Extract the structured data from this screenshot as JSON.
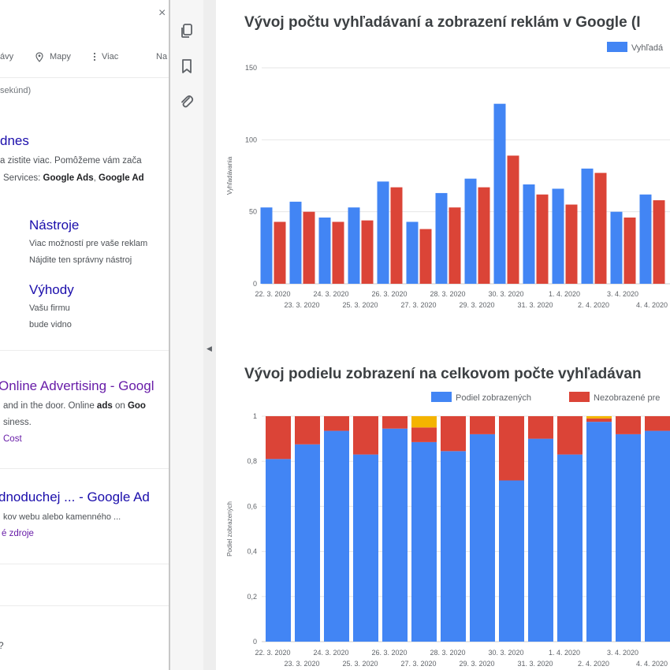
{
  "serp": {
    "close_glyph": "×",
    "nav": {
      "item1": "ávy",
      "maps": "Mapy",
      "more": "Viac",
      "trailing": "Na"
    },
    "stats": "sekúnd)",
    "result1": {
      "title": "dnes",
      "line1": "a zistite viac. Pomôžeme vám zača",
      "line2_prefix": "Services: ",
      "line2_b1": "Google Ads",
      "line2_sep": ", ",
      "line2_b2": "Google Ad"
    },
    "sublinks": [
      {
        "title": "Nástroje",
        "line1": "Viac možností pre vaše reklam",
        "line2": "Nájdite ten správny nástroj"
      },
      {
        "title": "Výhody",
        "line1": "Vašu firmu",
        "line2": "bude vidno"
      }
    ],
    "result2": {
      "title": "Online Advertising - Googl",
      "line1_prefix": "and in the door. Online ",
      "line1_b1": "ads",
      "line1_mid": " on ",
      "line1_b2": "Goo",
      "line2": "siness.",
      "link": "Cost"
    },
    "result3": {
      "title": "dnoduchej ... - Google Ad",
      "line1": "kov webu alebo kamenného ...",
      "link": "é zdroje"
    },
    "bottom_glyph": "?"
  },
  "toolbar": {
    "icons": [
      "copy-icon",
      "bookmark-icon",
      "attachment-icon"
    ]
  },
  "colors": {
    "blue": "#4285f4",
    "red": "#db4437",
    "yellow": "#f4b400",
    "grid": "#e6e6e6",
    "axis": "#cccccc"
  },
  "chart_data": [
    {
      "type": "bar",
      "title": "Vývoj počtu vyhľadávaní a zobrazení reklám v Google (I",
      "ylabel": "Vyhľadávania",
      "xlabel": "",
      "ylim": [
        0,
        150
      ],
      "yticks": [
        0,
        50,
        100,
        150
      ],
      "grid": true,
      "legend_position": "top-right",
      "categories": [
        "22. 3. 2020",
        "23. 3. 2020",
        "24. 3. 2020",
        "25. 3. 2020",
        "26. 3. 2020",
        "27. 3. 2020",
        "28. 3. 2020",
        "29. 3. 2020",
        "30. 3. 2020",
        "31. 3. 2020",
        "1. 4. 2020",
        "2. 4. 2020",
        "3. 4. 2020",
        "4. 4. 2020"
      ],
      "series": [
        {
          "name": "Vyhľadá",
          "color": "#4285f4",
          "values": [
            53,
            57,
            46,
            53,
            71,
            43,
            63,
            73,
            125,
            69,
            66,
            80,
            50,
            62
          ]
        },
        {
          "name": "",
          "color": "#db4437",
          "values": [
            43,
            50,
            43,
            44,
            67,
            38,
            53,
            67,
            89,
            62,
            55,
            77,
            46,
            58
          ]
        }
      ]
    },
    {
      "type": "bar",
      "stacked": true,
      "title": "Vývoj podielu zobrazení na celkovom počte vyhľadávan",
      "ylabel": "Podiel zobrazených",
      "xlabel": "",
      "ylim": [
        0,
        1
      ],
      "yticks": [
        "0",
        "0,2",
        "0,4",
        "0,6",
        "0,8",
        "1"
      ],
      "grid": true,
      "legend_position": "top",
      "categories": [
        "22. 3. 2020",
        "23. 3. 2020",
        "24. 3. 2020",
        "25. 3. 2020",
        "26. 3. 2020",
        "27. 3. 2020",
        "28. 3. 2020",
        "29. 3. 2020",
        "30. 3. 2020",
        "31. 3. 2020",
        "1. 4. 2020",
        "2. 4. 2020",
        "3. 4. 2020",
        "4. 4. 2020"
      ],
      "series": [
        {
          "name": "Podiel zobrazených",
          "color": "#4285f4",
          "values": [
            0.81,
            0.875,
            0.935,
            0.83,
            0.945,
            0.885,
            0.845,
            0.92,
            0.715,
            0.9,
            0.83,
            0.975,
            0.92,
            0.935
          ]
        },
        {
          "name": "Nezobrazené pre",
          "color": "#db4437",
          "values": [
            0.19,
            0.125,
            0.065,
            0.17,
            0.055,
            0.065,
            0.155,
            0.08,
            0.285,
            0.1,
            0.17,
            0.015,
            0.08,
            0.065
          ]
        },
        {
          "name": "",
          "color": "#f4b400",
          "values": [
            0,
            0,
            0,
            0,
            0,
            0.05,
            0,
            0,
            0,
            0,
            0,
            0.01,
            0,
            0
          ]
        }
      ]
    }
  ]
}
